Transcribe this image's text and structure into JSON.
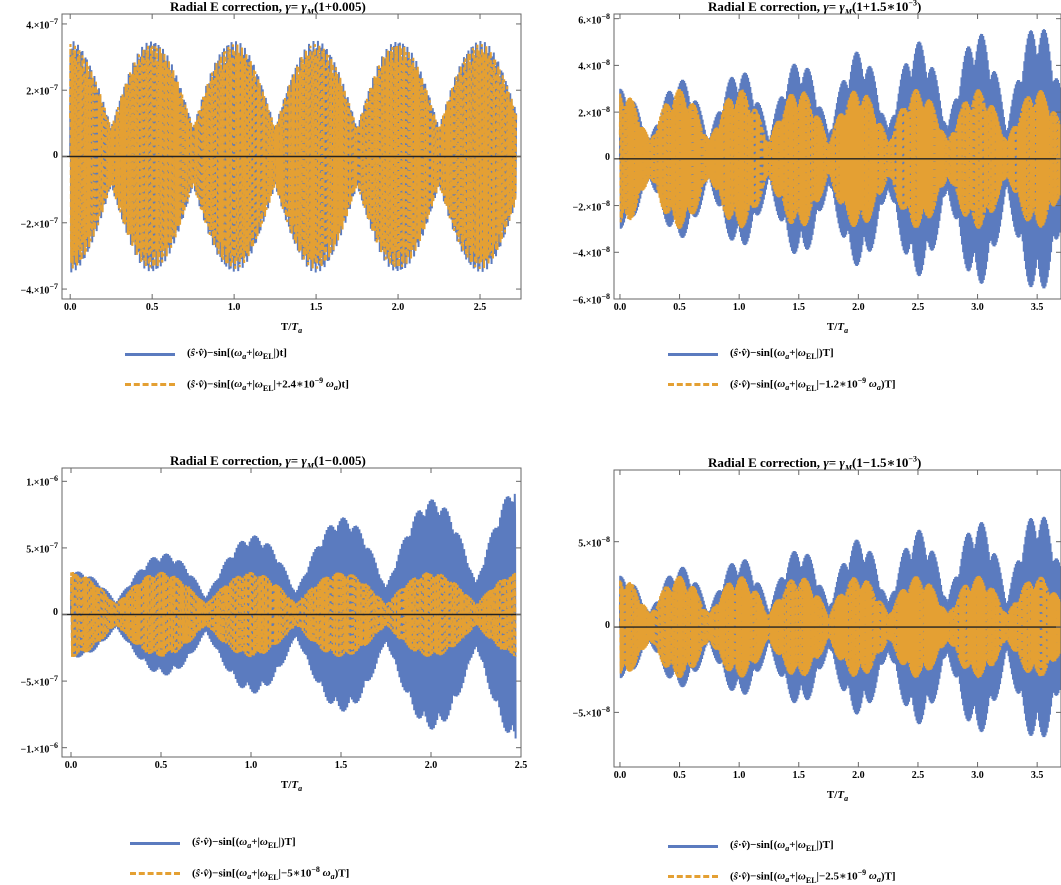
{
  "colors": {
    "blue": "#5b7bbf",
    "orange": "#e4a033",
    "axis": "#222222",
    "frame": "#666666"
  },
  "chart_data": [
    {
      "type": "line",
      "title": "Radial E correction, γ= γ_M(1+0.005)",
      "xlabel": "T/T_a",
      "xlim": [
        -0.05,
        2.75
      ],
      "ylim": [
        -4.3e-07,
        4.3e-07
      ],
      "x_ticks": [
        "0.0",
        "0.5",
        "1.0",
        "1.5",
        "2.0",
        "2.5"
      ],
      "y_ticks": [
        "4.×10⁻⁷",
        "2.×10⁻⁷",
        "0",
        "−2.×10⁻⁷",
        "−4.×10⁻⁷"
      ],
      "series": [
        {
          "name": "(ŝ·v̂)−sin[(ωa+|ωEL|)t]",
          "style": "solid",
          "envelope": "beat",
          "amp": 3.5e-07,
          "beat_period": 0.5,
          "growth": 0.0,
          "x_end": 2.72
        },
        {
          "name": "(ŝ·v̂)−sin[(ωa+|ωEL|+2.4∗10⁻⁹ ωa)t]",
          "style": "dashed",
          "envelope": "beat",
          "amp": 3.4e-07,
          "beat_period": 0.5,
          "growth": 0.0,
          "x_end": 2.72
        }
      ]
    },
    {
      "type": "line",
      "title": "Radial E correction, γ= γ_M(1+1.5∗10⁻³)",
      "xlabel": "T/T_a",
      "xlim": [
        -0.05,
        3.7
      ],
      "ylim": [
        -6e-08,
        6.2e-08
      ],
      "x_ticks": [
        "0.0",
        "0.5",
        "1.0",
        "1.5",
        "2.0",
        "2.5",
        "3.0",
        "3.5"
      ],
      "y_ticks": [
        "6.×10⁻⁸",
        "4.×10⁻⁸",
        "2.×10⁻⁸",
        "0",
        "−2.×10⁻⁸",
        "−4.×10⁻⁸",
        "−6.×10⁻⁸"
      ],
      "series": [
        {
          "name": "(ŝ·v̂)−sin[(ωa+|ωEL|)T]",
          "style": "solid",
          "envelope": "beat",
          "amp": 3e-08,
          "beat_period": 0.5,
          "growth": 0.27,
          "x_end": 3.7
        },
        {
          "name": "(ŝ·v̂)−sin[(ωa+|ωEL|−1.2∗10⁻⁹ ωa)T]",
          "style": "dashed",
          "envelope": "beat",
          "amp": 3e-08,
          "beat_period": 0.5,
          "growth": 0.0,
          "x_end": 3.7
        }
      ]
    },
    {
      "type": "line",
      "title": "Radial E correction, γ= γ_M(1−0.005)",
      "xlabel": "T/T_a",
      "xlim": [
        -0.05,
        2.5
      ],
      "ylim": [
        -1.07e-06,
        1.1e-06
      ],
      "x_ticks": [
        "0.0",
        "0.5",
        "1.0",
        "1.5",
        "2.0",
        "2.5"
      ],
      "y_ticks": [
        "1.×10⁻⁶",
        "5.×10⁻⁷",
        "0",
        "−5.×10⁻⁷",
        "−1.×10⁻⁶"
      ],
      "series": [
        {
          "name": "(ŝ·v̂)−sin[(ωa+|ωEL|)T]",
          "style": "solid",
          "envelope": "beat",
          "amp": 3.2e-07,
          "beat_period": 0.5,
          "growth": 0.85,
          "x_end": 2.47
        },
        {
          "name": "(ŝ·v̂)−sin[(ωa+|ωEL|−5∗10⁻⁸ ωa)T]",
          "style": "dashed",
          "envelope": "beat",
          "amp": 3.2e-07,
          "beat_period": 0.5,
          "growth": 0.0,
          "x_end": 2.47
        }
      ]
    },
    {
      "type": "line",
      "title": "Radial E correction, γ= γ_M(1−1.5∗10⁻³)",
      "xlabel": "T/T_a",
      "xlim": [
        -0.05,
        3.7
      ],
      "ylim": [
        -8.2e-08,
        9.2e-08
      ],
      "x_ticks": [
        "0.0",
        "0.5",
        "1.0",
        "1.5",
        "2.0",
        "2.5",
        "3.0",
        "3.5"
      ],
      "y_ticks": [
        "5.×10⁻⁸",
        "0",
        "−5.×10⁻⁸"
      ],
      "series": [
        {
          "name": "(ŝ·v̂)−sin[(ωa+|ωEL|)T]",
          "style": "solid",
          "envelope": "beat",
          "amp": 3e-08,
          "beat_period": 0.5,
          "growth": 0.36,
          "x_end": 3.7
        },
        {
          "name": "(ŝ·v̂)−sin[(ωa+|ωEL|−2.5∗10⁻⁹ ωa)T]",
          "style": "dashed",
          "envelope": "beat",
          "amp": 3e-08,
          "beat_period": 0.5,
          "growth": 0.0,
          "x_end": 3.7
        }
      ]
    }
  ]
}
